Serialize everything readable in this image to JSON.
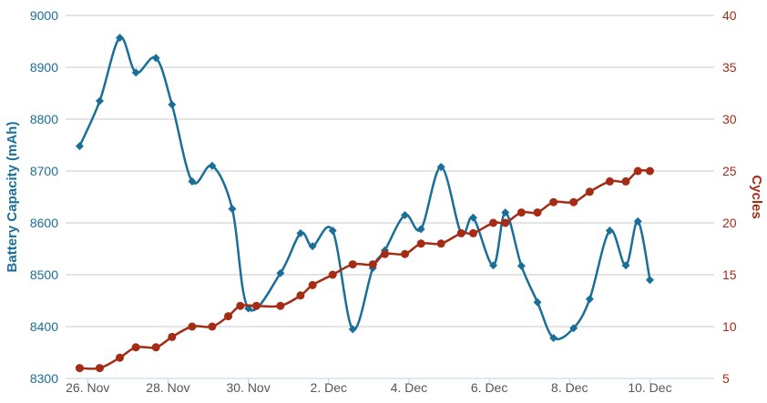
{
  "chart_data": {
    "type": "line",
    "x_axis": {
      "unit": "days",
      "tick_labels": [
        "26. Nov",
        "28. Nov",
        "30. Nov",
        "2. Dec",
        "4. Dec",
        "6. Dec",
        "8. Dec",
        "10. Dec"
      ],
      "tick_values": [
        0,
        2,
        4,
        6,
        8,
        10,
        12,
        14
      ],
      "range": [
        -0.55,
        15.6
      ]
    },
    "y_left": {
      "label": "Battery Capacity (mAh)",
      "range": [
        8300,
        9000
      ],
      "ticks": [
        8300,
        8400,
        8500,
        8600,
        8700,
        8800,
        8900,
        9000
      ],
      "color": "#1a6f98"
    },
    "y_right": {
      "label": "Cycles",
      "range": [
        5,
        40
      ],
      "ticks": [
        5,
        10,
        15,
        20,
        25,
        30,
        35,
        40
      ],
      "color": "#a42c15"
    },
    "grid": true,
    "series": [
      {
        "name": "Battery Capacity (mAh)",
        "axis": "left",
        "marker": "diamond",
        "color": "#1a6f98",
        "points": [
          [
            -0.2,
            8748
          ],
          [
            0.3,
            8835
          ],
          [
            0.8,
            8957
          ],
          [
            1.2,
            8890
          ],
          [
            1.7,
            8918
          ],
          [
            2.1,
            8828
          ],
          [
            2.6,
            8680
          ],
          [
            3.1,
            8710
          ],
          [
            3.6,
            8627
          ],
          [
            4.0,
            8435
          ],
          [
            4.8,
            8503
          ],
          [
            5.3,
            8580
          ],
          [
            5.6,
            8555
          ],
          [
            6.1,
            8585
          ],
          [
            6.6,
            8395
          ],
          [
            7.1,
            8513
          ],
          [
            7.4,
            8547
          ],
          [
            7.9,
            8615
          ],
          [
            8.3,
            8588
          ],
          [
            8.8,
            8708
          ],
          [
            9.3,
            8580
          ],
          [
            9.6,
            8610
          ],
          [
            10.1,
            8518
          ],
          [
            10.4,
            8620
          ],
          [
            10.8,
            8517
          ],
          [
            11.2,
            8447
          ],
          [
            11.6,
            8378
          ],
          [
            12.1,
            8397
          ],
          [
            12.5,
            8453
          ],
          [
            13.0,
            8585
          ],
          [
            13.4,
            8518
          ],
          [
            13.7,
            8603
          ],
          [
            14.0,
            8490
          ]
        ]
      },
      {
        "name": "Cycles",
        "axis": "right",
        "marker": "circle",
        "color": "#a42c15",
        "points": [
          [
            -0.2,
            6
          ],
          [
            0.3,
            6
          ],
          [
            0.8,
            7
          ],
          [
            1.2,
            8
          ],
          [
            1.7,
            8
          ],
          [
            2.1,
            9
          ],
          [
            2.6,
            10
          ],
          [
            3.1,
            10
          ],
          [
            3.5,
            11
          ],
          [
            3.8,
            12
          ],
          [
            4.2,
            12
          ],
          [
            4.8,
            12
          ],
          [
            5.3,
            13
          ],
          [
            5.6,
            14
          ],
          [
            6.1,
            15
          ],
          [
            6.6,
            16
          ],
          [
            7.1,
            16
          ],
          [
            7.4,
            17
          ],
          [
            7.9,
            17
          ],
          [
            8.3,
            18
          ],
          [
            8.8,
            18
          ],
          [
            9.3,
            19
          ],
          [
            9.6,
            19
          ],
          [
            10.1,
            20
          ],
          [
            10.4,
            20
          ],
          [
            10.8,
            21
          ],
          [
            11.2,
            21
          ],
          [
            11.6,
            22
          ],
          [
            12.1,
            22
          ],
          [
            12.5,
            23
          ],
          [
            13.0,
            24
          ],
          [
            13.4,
            24
          ],
          [
            13.7,
            25
          ],
          [
            14.0,
            25
          ]
        ]
      }
    ]
  }
}
